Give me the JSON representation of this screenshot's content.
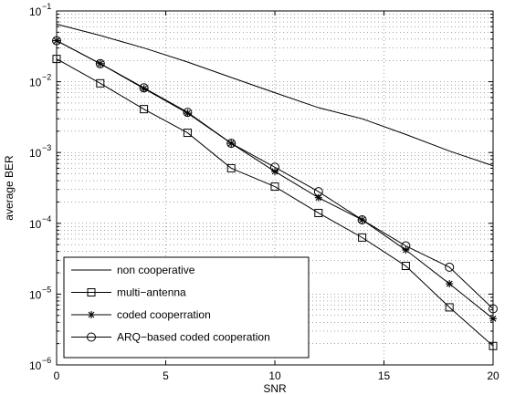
{
  "chart_data": {
    "type": "line",
    "title": "",
    "xlabel": "SNR",
    "ylabel": "average BER",
    "xlim": [
      0,
      20
    ],
    "ylim": [
      1e-06,
      0.1
    ],
    "yscale": "log",
    "grid": "dotted major and minor",
    "legend_position": "bottom-left",
    "x_ticks": [
      0,
      5,
      10,
      15,
      20
    ],
    "x_tick_labels": [
      "0",
      "5",
      "10",
      "15",
      "20"
    ],
    "y_ticks": [
      -6,
      -5,
      -4,
      -3,
      -2,
      -1
    ],
    "y_tick_labels": [
      {
        "base": "10",
        "exp": "−6"
      },
      {
        "base": "10",
        "exp": "−5"
      },
      {
        "base": "10",
        "exp": "−4"
      },
      {
        "base": "10",
        "exp": "−3"
      },
      {
        "base": "10",
        "exp": "−2"
      },
      {
        "base": "10",
        "exp": "−1"
      }
    ],
    "series": [
      {
        "name": "non cooperative",
        "marker": "none",
        "x": [
          0,
          2,
          4,
          6,
          8,
          10,
          12,
          14,
          16,
          18,
          20
        ],
        "y": [
          0.065,
          0.045,
          0.03,
          0.019,
          0.0115,
          0.007,
          0.0043,
          0.003,
          0.0018,
          0.00105,
          0.00065
        ]
      },
      {
        "name": "multi−antenna",
        "marker": "square",
        "x": [
          0,
          2,
          4,
          6,
          8,
          10,
          12,
          14,
          16,
          18,
          20
        ],
        "y": [
          0.021,
          0.0095,
          0.0041,
          0.0019,
          0.0006,
          0.00033,
          0.00014,
          6.3e-05,
          2.5e-05,
          6.5e-06,
          1.85e-06
        ]
      },
      {
        "name": "coded cooperration",
        "marker": "star",
        "x": [
          0,
          2,
          4,
          6,
          8,
          10,
          12,
          14,
          16,
          18,
          20
        ],
        "y": [
          0.038,
          0.018,
          0.008,
          0.0036,
          0.00135,
          0.00054,
          0.00023,
          0.000112,
          4.2e-05,
          1.4e-05,
          4.5e-06
        ]
      },
      {
        "name": "ARQ−based coded cooperation",
        "marker": "circle",
        "x": [
          0,
          2,
          4,
          6,
          8,
          10,
          12,
          14,
          16,
          18,
          20
        ],
        "y": [
          0.038,
          0.018,
          0.0082,
          0.0037,
          0.00135,
          0.00062,
          0.00028,
          0.000112,
          4.8e-05,
          2.4e-05,
          6.2e-06
        ]
      }
    ]
  }
}
